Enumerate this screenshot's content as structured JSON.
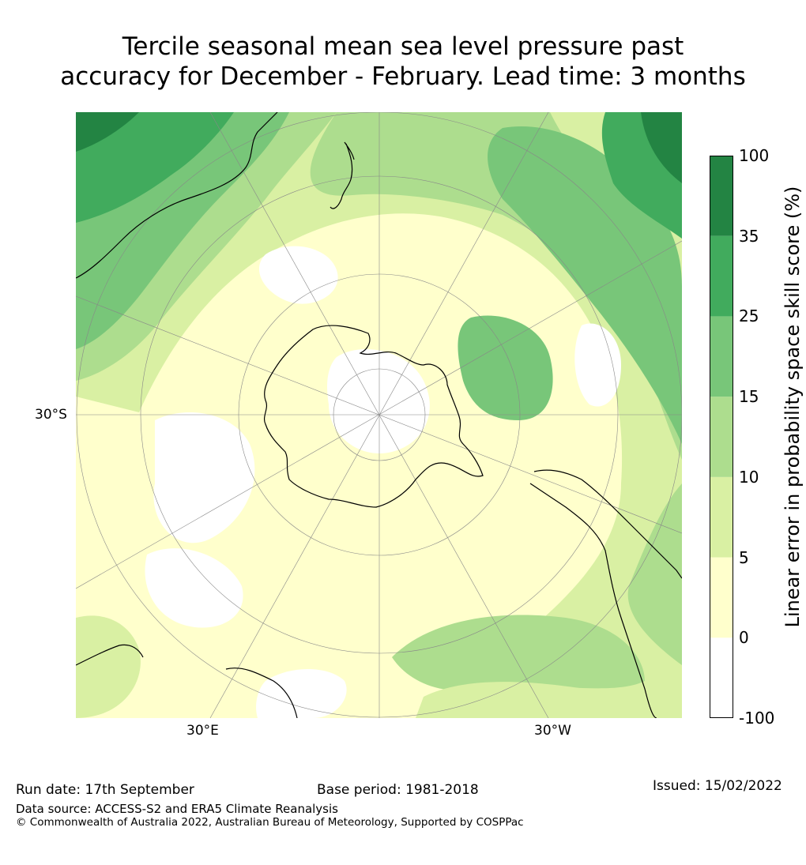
{
  "title": {
    "line1": "Tercile seasonal mean sea level pressure past",
    "line2": "accuracy for December - February. Lead time: 3 months"
  },
  "map": {
    "lat_label": "30°S",
    "lon_labels": {
      "east": "30°E",
      "west": "30°W"
    },
    "colors": {
      "c0": "#ffffff",
      "c1": "#ffffcc",
      "c2": "#d9f0a3",
      "c3": "#addd8e",
      "c4": "#78c679",
      "c5": "#41ab5d",
      "c6": "#238443",
      "coast": "#000000",
      "grid": "#888888"
    }
  },
  "colorbar": {
    "label": "Linear error in probability space skill score (%)",
    "ticks": [
      "-100",
      "0",
      "5",
      "10",
      "15",
      "25",
      "35",
      "100"
    ],
    "colors": [
      "#ffffff",
      "#ffffcc",
      "#d9f0a3",
      "#addd8e",
      "#78c679",
      "#41ab5d",
      "#238443"
    ]
  },
  "footer": {
    "run_date": "Run date: 17th September",
    "base_period": "Base period: 1981-2018",
    "issued": "Issued: 15/02/2022",
    "data_source": "Data source: ACCESS-S2 and ERA5 Climate Reanalysis",
    "copyright": "© Commonwealth of Australia 2022, Australian Bureau of Meteorology, Supported by COSPPac"
  }
}
